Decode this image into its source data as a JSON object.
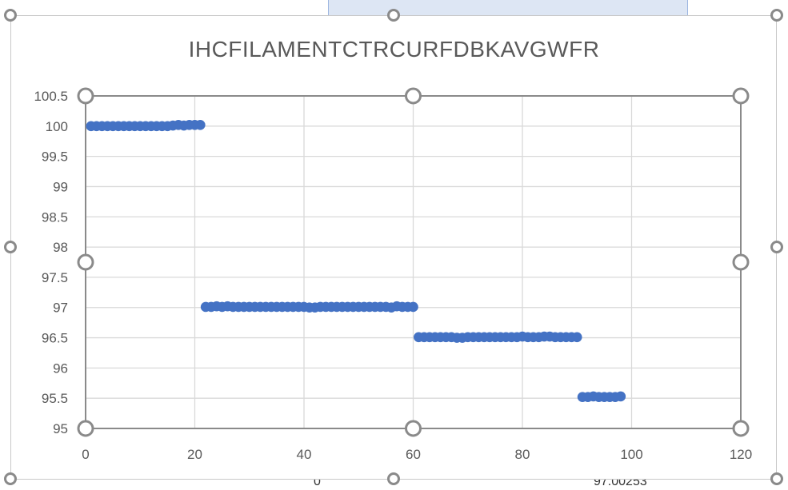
{
  "sheet": {
    "partial_cell_left": "0",
    "partial_cell_right": "97.00253"
  },
  "colors": {
    "marker": "#4472c4",
    "grid": "#d9d9d9",
    "axis_text": "#595959",
    "handle": "#8a8a8a"
  },
  "chart_data": {
    "type": "scatter",
    "title": "IHCFILAMENTCTRCURFDBKAVGWFR",
    "xlabel": "",
    "ylabel": "",
    "xlim": [
      0,
      120
    ],
    "ylim": [
      95,
      100.5
    ],
    "x_ticks": [
      0,
      20,
      40,
      60,
      80,
      100,
      120
    ],
    "y_ticks": [
      100.5,
      100,
      99.5,
      99,
      98.5,
      98,
      97.5,
      97,
      96.5,
      96,
      95.5,
      95
    ],
    "grid": true,
    "legend": "none",
    "series": [
      {
        "marker": "circle",
        "x": [
          1,
          2,
          3,
          4,
          5,
          6,
          7,
          8,
          9,
          10,
          11,
          12,
          13,
          14,
          15,
          16,
          17,
          18,
          19,
          20,
          21,
          22,
          23,
          24,
          25,
          26,
          27,
          28,
          29,
          30,
          31,
          32,
          33,
          34,
          35,
          36,
          37,
          38,
          39,
          40,
          41,
          42,
          43,
          44,
          45,
          46,
          47,
          48,
          49,
          50,
          51,
          52,
          53,
          54,
          55,
          56,
          57,
          58,
          59,
          60,
          61,
          62,
          63,
          64,
          65,
          66,
          67,
          68,
          69,
          70,
          71,
          72,
          73,
          74,
          75,
          76,
          77,
          78,
          79,
          80,
          81,
          82,
          83,
          84,
          85,
          86,
          87,
          88,
          89,
          90,
          91,
          92,
          93,
          94,
          95,
          96,
          97,
          98
        ],
        "y": [
          100.0,
          100.0,
          100.0,
          100.0,
          100.0,
          100.0,
          100.0,
          100.0,
          100.0,
          100.0,
          100.0,
          100.0,
          100.0,
          100.0,
          100.0,
          100.01,
          100.02,
          100.01,
          100.02,
          100.02,
          100.02,
          97.01,
          97.01,
          97.02,
          97.01,
          97.02,
          97.01,
          97.01,
          97.01,
          97.01,
          97.01,
          97.01,
          97.01,
          97.01,
          97.01,
          97.01,
          97.01,
          97.01,
          97.01,
          97.01,
          97.0,
          97.0,
          97.01,
          97.01,
          97.01,
          97.01,
          97.01,
          97.01,
          97.01,
          97.01,
          97.01,
          97.01,
          97.01,
          97.01,
          97.01,
          97.0,
          97.02,
          97.01,
          97.01,
          97.01,
          96.51,
          96.51,
          96.51,
          96.51,
          96.51,
          96.51,
          96.51,
          96.5,
          96.5,
          96.51,
          96.51,
          96.51,
          96.51,
          96.51,
          96.51,
          96.51,
          96.51,
          96.51,
          96.51,
          96.52,
          96.51,
          96.51,
          96.51,
          96.52,
          96.52,
          96.51,
          96.51,
          96.51,
          96.51,
          96.51,
          95.52,
          95.52,
          95.53,
          95.52,
          95.52,
          95.52,
          95.52,
          95.53
        ]
      }
    ]
  }
}
